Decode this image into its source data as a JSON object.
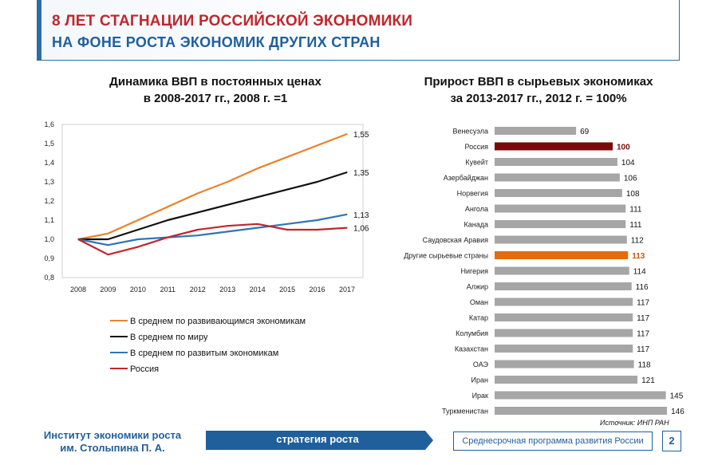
{
  "header": {
    "title_line1": "8 ЛЕТ СТАГНАЦИИ РОССИЙСКОЙ ЭКОНОМИКИ",
    "title_line2": "НА ФОНЕ РОСТА ЭКОНОМИК  ДРУГИХ СТРАН"
  },
  "footer": {
    "org_line1": "Институт экономики роста",
    "org_line2": "им. Столыпина П. А.",
    "banner": "стратегия роста",
    "program": "Среднесрочная программа развития России",
    "page": "2"
  },
  "source": "Источник: ИНП РАН",
  "colors": {
    "accent_red": "#c0272d",
    "accent_blue": "#1f5f9b",
    "bar_default": "#a6a6a6",
    "bar_russia": "#7a0a0a",
    "bar_other": "#e46c0a"
  },
  "chart_data": [
    {
      "type": "line",
      "title_line1": "Динамика ВВП в постоянных ценах",
      "title_line2": "в 2008-2017 гг., 2008 г. =1",
      "x": [
        "2008",
        "2009",
        "2010",
        "2011",
        "2012",
        "2013",
        "2014",
        "2015",
        "2016",
        "2017"
      ],
      "ylim": [
        0.8,
        1.6
      ],
      "yticks": [
        "0,8",
        "0,9",
        "1,0",
        "1,1",
        "1,2",
        "1,3",
        "1,4",
        "1,5",
        "1,6"
      ],
      "grid": false,
      "legend_placement": "bottom",
      "series": [
        {
          "name": "В среднем по развивающимся экономикам",
          "color": "#e8832a",
          "end_label": "1,55",
          "values": [
            1.0,
            1.03,
            1.1,
            1.17,
            1.24,
            1.3,
            1.37,
            1.43,
            1.49,
            1.55
          ]
        },
        {
          "name": "В среднем по миру",
          "color": "#111111",
          "end_label": "1,35",
          "values": [
            1.0,
            1.0,
            1.05,
            1.1,
            1.14,
            1.18,
            1.22,
            1.26,
            1.3,
            1.35
          ]
        },
        {
          "name": "В среднем по развитым экономикам",
          "color": "#2e75b6",
          "end_label": "1,13",
          "values": [
            1.0,
            0.97,
            1.0,
            1.01,
            1.02,
            1.04,
            1.06,
            1.08,
            1.1,
            1.13
          ]
        },
        {
          "name": "Россия",
          "color": "#c0272d",
          "end_label": "1,06",
          "values": [
            1.0,
            0.92,
            0.96,
            1.01,
            1.05,
            1.07,
            1.08,
            1.05,
            1.05,
            1.06
          ]
        }
      ]
    },
    {
      "type": "bar",
      "orientation": "horizontal",
      "title_line1": "Прирост ВВП в сырьевых экономиках",
      "title_line2": "за 2013-2017 гг., 2012 г. = 100%",
      "xlim": [
        0,
        150
      ],
      "categories": [
        "Венесуэла",
        "Россия",
        "Кувейт",
        "Азербайджан",
        "Норвегия",
        "Ангола",
        "Канада",
        "Саудовская Аравия",
        "Другие сырьевые страны",
        "Нигерия",
        "Алжир",
        "Оман",
        "Катар",
        "Колумбия",
        "Казахстан",
        "ОАЭ",
        "Иран",
        "Ирак",
        "Туркменистан"
      ],
      "values": [
        69,
        100,
        104,
        106,
        108,
        111,
        111,
        112,
        113,
        114,
        116,
        117,
        117,
        117,
        117,
        118,
        121,
        145,
        146
      ],
      "highlight": {
        "Россия": "bar_russia",
        "Другие сырьевые страны": "bar_other"
      }
    }
  ]
}
